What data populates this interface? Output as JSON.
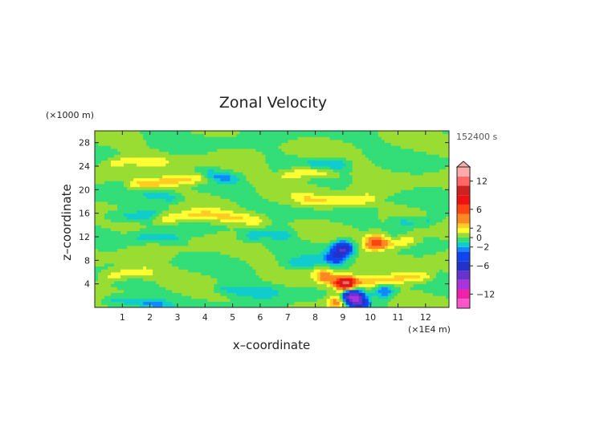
{
  "chart_data": {
    "type": "heatmap",
    "title": "Zonal Velocity",
    "xlabel": "x–coordinate",
    "ylabel": "z–coordinate",
    "x_unit": "(×1E4 m)",
    "y_unit": "(×1000 m)",
    "time_label": "152400 s",
    "x_ticks": [
      1,
      2,
      3,
      4,
      5,
      6,
      7,
      8,
      9,
      10,
      11,
      12
    ],
    "y_ticks": [
      4,
      8,
      12,
      16,
      20,
      24,
      28
    ],
    "xlim": [
      0,
      12.85
    ],
    "ylim": [
      0,
      30
    ],
    "grid": false,
    "colorbar": {
      "position": "right",
      "levels": [
        -15,
        -13,
        -11,
        -9,
        -7,
        -5,
        -3,
        -2,
        -1,
        0,
        1,
        2,
        3,
        5,
        7,
        9,
        11,
        13,
        15
      ],
      "colors": [
        "#ff55cc",
        "#ee22aa",
        "#aa33dd",
        "#6633cc",
        "#2233cc",
        "#1144ee",
        "#1188ff",
        "#11cccc",
        "#33dd77",
        "#99dd33",
        "#ffff33",
        "#ffcc22",
        "#ff8822",
        "#ff4411",
        "#ee1111",
        "#cc2222",
        "#ff6666",
        "#ffaaaa"
      ],
      "tick_labels": [
        "12",
        "6",
        "2",
        "0",
        "−2",
        "−6",
        "−12"
      ],
      "tick_values": [
        12,
        6,
        2,
        0,
        -2,
        -6,
        -12
      ],
      "extend": "max"
    },
    "features": [
      {
        "kind": "band",
        "z": 24.5,
        "amp": 1.5,
        "x_start": 0.0,
        "x_end": 3.0
      },
      {
        "kind": "band",
        "z": 22.3,
        "amp": -2.0,
        "x_start": 3.5,
        "x_end": 5.5
      },
      {
        "kind": "band",
        "z": 21.5,
        "amp": 2.5,
        "x_start": 1.0,
        "x_end": 4.5
      },
      {
        "kind": "band",
        "z": 22.5,
        "amp": 2.2,
        "x_start": 6.5,
        "x_end": 9.0
      },
      {
        "kind": "band",
        "z": 24.8,
        "amp": -2.0,
        "x_start": 7.5,
        "x_end": 9.5
      },
      {
        "kind": "band",
        "z": 19.0,
        "amp": -1.8,
        "x_start": 1.5,
        "x_end": 3.5
      },
      {
        "kind": "band",
        "z": 18.5,
        "amp": 2.0,
        "x_start": 7.0,
        "x_end": 10.5
      },
      {
        "kind": "band",
        "z": 16.0,
        "amp": -1.6,
        "x_start": 0.0,
        "x_end": 2.5
      },
      {
        "kind": "band",
        "z": 15.2,
        "amp": 2.2,
        "x_start": 2.0,
        "x_end": 6.5
      },
      {
        "kind": "band",
        "z": 15.0,
        "amp": -1.8,
        "x_start": 10.5,
        "x_end": 12.8
      },
      {
        "kind": "band",
        "z": 11.5,
        "amp": -1.5,
        "x_start": 1.0,
        "x_end": 3.5
      },
      {
        "kind": "band",
        "z": 12.0,
        "amp": -1.7,
        "x_start": 5.0,
        "x_end": 7.5
      },
      {
        "kind": "band",
        "z": 11.0,
        "amp": 2.5,
        "x_start": 9.5,
        "x_end": 12.0
      },
      {
        "kind": "band",
        "z": 8.0,
        "amp": -1.5,
        "x_start": 6.5,
        "x_end": 8.5
      },
      {
        "kind": "band",
        "z": 5.5,
        "amp": 2.0,
        "x_start": 0.0,
        "x_end": 2.5
      },
      {
        "kind": "band",
        "z": 4.8,
        "amp": 2.5,
        "x_start": 8.0,
        "x_end": 12.5
      },
      {
        "kind": "band",
        "z": 3.0,
        "amp": -1.6,
        "x_start": 4.0,
        "x_end": 7.0
      },
      {
        "kind": "band",
        "z": 0.8,
        "amp": -2.0,
        "x_start": 0.0,
        "x_end": 3.0
      },
      {
        "kind": "blob",
        "x": 9.0,
        "z": 10.0,
        "amp": -7.0
      },
      {
        "kind": "blob",
        "x": 8.7,
        "z": 8.5,
        "amp": -4.0
      },
      {
        "kind": "blob",
        "x": 10.2,
        "z": 11.3,
        "amp": 5.0
      },
      {
        "kind": "blob",
        "x": 9.1,
        "z": 4.0,
        "amp": 10.0
      },
      {
        "kind": "blob",
        "x": 9.3,
        "z": 2.0,
        "amp": -9.0
      },
      {
        "kind": "blob",
        "x": 8.8,
        "z": 1.0,
        "amp": 4.0
      },
      {
        "kind": "blob",
        "x": 9.6,
        "z": 0.8,
        "amp": -6.0
      },
      {
        "kind": "blob",
        "x": 8.3,
        "z": 5.5,
        "amp": 3.0
      },
      {
        "kind": "blob",
        "x": 10.5,
        "z": 2.8,
        "amp": -3.0
      }
    ]
  }
}
